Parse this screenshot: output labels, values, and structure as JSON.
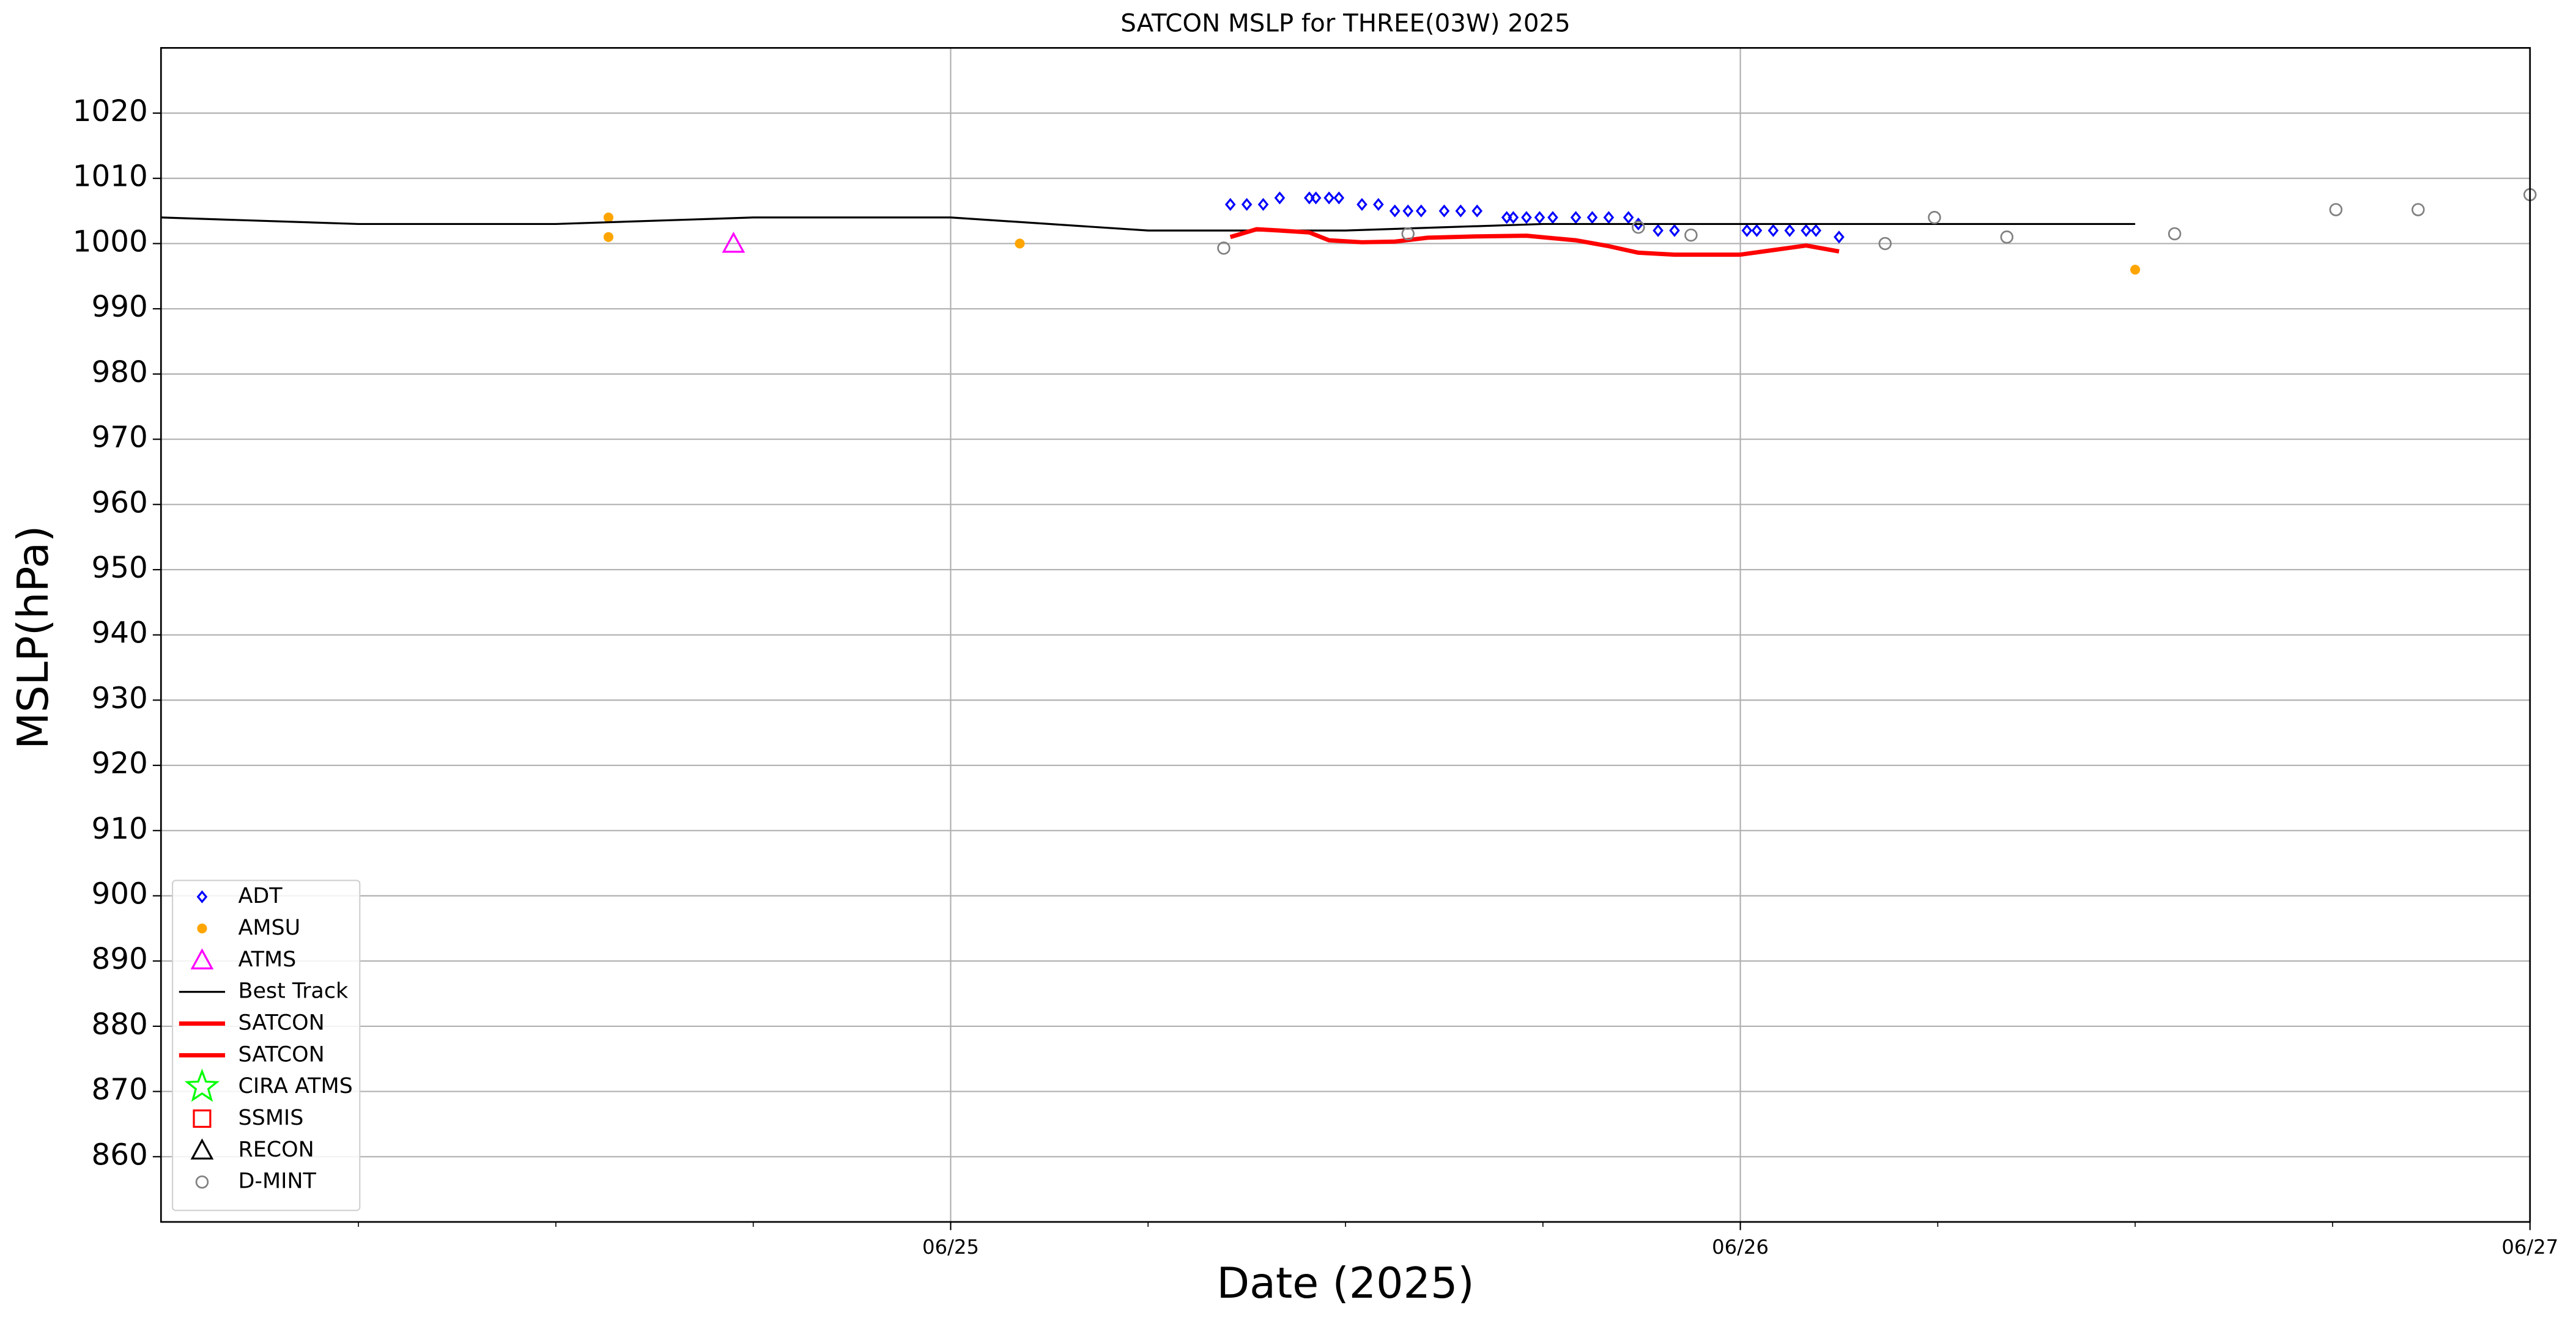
{
  "chart_data": {
    "type": "scatter",
    "title": "SATCON MSLP for THREE(03W) 2025",
    "xlabel": "Date (2025)",
    "ylabel": "MSLP(hPa)",
    "xlim": [
      0,
      72
    ],
    "ylim": [
      850,
      1030
    ],
    "xticks": [
      {
        "value": 24,
        "label": "06/25"
      },
      {
        "value": 48,
        "label": "06/26"
      },
      {
        "value": 72,
        "label": "06/27"
      }
    ],
    "xminorticks": [
      6,
      12,
      18,
      30,
      36,
      42,
      54,
      60,
      66
    ],
    "yticks": [
      860,
      870,
      880,
      890,
      900,
      910,
      920,
      930,
      940,
      950,
      960,
      970,
      980,
      990,
      1000,
      1010,
      1020
    ],
    "grid": true,
    "legend": "lower left",
    "series": [
      {
        "name": "ADT",
        "color": "#0000ff",
        "marker": "diamond",
        "x": [
          32.5,
          33.0,
          33.5,
          34.0,
          34.9,
          35.1,
          35.5,
          35.8,
          36.5,
          37.0,
          37.5,
          37.9,
          38.3,
          39.0,
          39.5,
          40.0,
          40.9,
          41.1,
          41.5,
          41.9,
          42.3,
          43.0,
          43.5,
          44.0,
          44.6,
          44.9,
          45.5,
          46.0,
          48.2,
          48.5,
          49.0,
          49.5,
          50.0,
          50.3,
          51.0
        ],
        "values": [
          1006,
          1006,
          1006,
          1007,
          1007,
          1007,
          1007,
          1007,
          1006,
          1006,
          1005,
          1005,
          1005,
          1005,
          1005,
          1005,
          1004,
          1004,
          1004,
          1004,
          1004,
          1004,
          1004,
          1004,
          1004,
          1003,
          1002,
          1002,
          1002,
          1002,
          1002,
          1002,
          1002,
          1002,
          1001
        ]
      },
      {
        "name": "AMSU",
        "color": "#ffa500",
        "marker": "dot",
        "x": [
          13.6,
          13.6,
          26.1,
          60.0
        ],
        "values": [
          1004,
          1001,
          1000,
          996
        ]
      },
      {
        "name": "ATMS",
        "color": "#ff00ff",
        "marker": "triangle",
        "x": [
          17.4
        ],
        "values": [
          1000
        ]
      },
      {
        "name": "Best Track",
        "color": "#000000",
        "marker": "line",
        "x": [
          0,
          6,
          12,
          18,
          24,
          30,
          36,
          42,
          48,
          54,
          60
        ],
        "values": [
          1004,
          1003,
          1003,
          1004,
          1004,
          1002,
          1002,
          1003,
          1003,
          1003,
          1003
        ]
      },
      {
        "name": "SATCON",
        "color": "#ff0000",
        "marker": "thickline",
        "x": [
          32.5,
          33.3,
          34.0,
          34.9,
          35.5,
          36.5,
          37.5,
          38.5,
          40.0,
          41.5,
          43.0,
          44.0,
          44.9,
          46.0,
          48.0,
          49.0,
          50.0,
          51.0
        ],
        "values": [
          1001,
          1002.2,
          1002,
          1001.7,
          1000.5,
          1000.2,
          1000.3,
          1000.9,
          1001.1,
          1001.2,
          1000.5,
          999.6,
          998.6,
          998.3,
          998.3,
          999,
          999.7,
          998.8
        ]
      },
      {
        "name": "SATCON",
        "color": "#ff0000",
        "marker": "thickline",
        "x": [],
        "values": []
      },
      {
        "name": "CIRA ATMS",
        "color": "#00ff00",
        "marker": "star",
        "x": [],
        "values": []
      },
      {
        "name": "SSMIS",
        "color": "#ff0000",
        "marker": "square",
        "x": [],
        "values": []
      },
      {
        "name": "RECON",
        "color": "#000000",
        "marker": "triangle",
        "x": [],
        "values": []
      },
      {
        "name": "D-MINT",
        "color": "#808080",
        "marker": "circle",
        "x": [
          32.3,
          37.9,
          44.9,
          46.5,
          52.4,
          53.9,
          56.1,
          61.2,
          66.1,
          68.6,
          72.0
        ],
        "values": [
          999.3,
          1001.5,
          1002.5,
          1001.3,
          1000,
          1004,
          1001,
          1001.5,
          1005.2,
          1005.2,
          1007.5
        ]
      }
    ]
  }
}
